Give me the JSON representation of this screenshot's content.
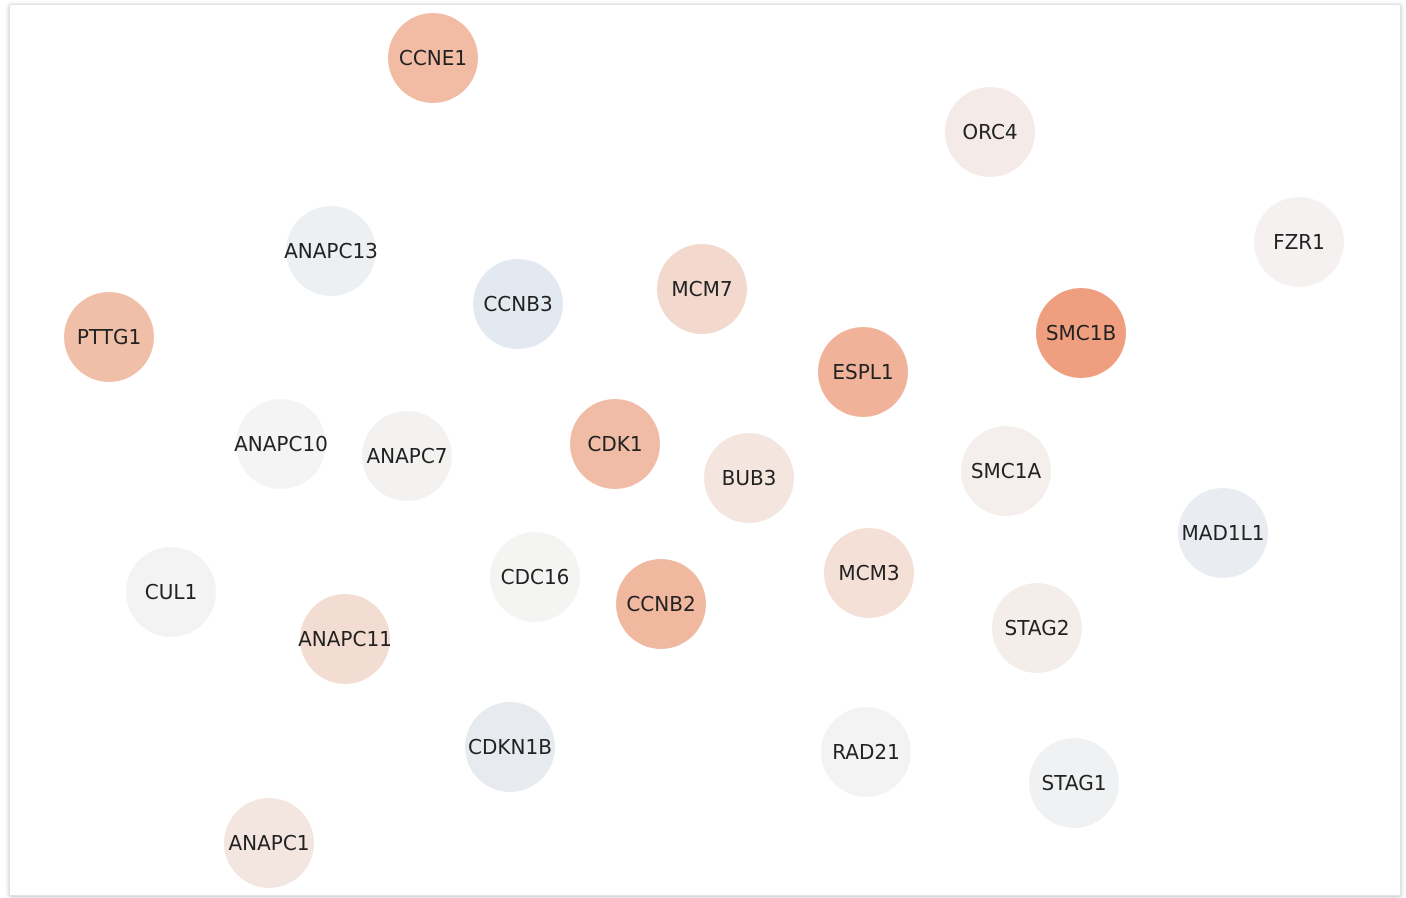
{
  "nodes": [
    {
      "label": "CCNE1",
      "color": "#f2bba4"
    },
    {
      "label": "ORC4",
      "color": "#f4ebe8"
    },
    {
      "label": "FZR1",
      "color": "#f5f1f0"
    },
    {
      "label": "ANAPC13",
      "color": "#edf0f3"
    },
    {
      "label": "CCNB3",
      "color": "#e2e9f0"
    },
    {
      "label": "MCM7",
      "color": "#f2d8cd"
    },
    {
      "label": "PTTG1",
      "color": "#f0bfa8"
    },
    {
      "label": "SMC1B",
      "color": "#ef9f7f"
    },
    {
      "label": "ESPL1",
      "color": "#f0b39a"
    },
    {
      "label": "ANAPC10",
      "color": "#f4f4f4"
    },
    {
      "label": "ANAPC7",
      "color": "#f3f2f1"
    },
    {
      "label": "CDK1",
      "color": "#f1bca5"
    },
    {
      "label": "BUB3",
      "color": "#f4e5df"
    },
    {
      "label": "SMC1A",
      "color": "#f4efed"
    },
    {
      "label": "MAD1L1",
      "color": "#e9edf1"
    },
    {
      "label": "CUL1",
      "color": "#f3f3f3"
    },
    {
      "label": "CDC16",
      "color": "#f4f4f3"
    },
    {
      "label": "CCNB2",
      "color": "#f1b8a0"
    },
    {
      "label": "MCM3",
      "color": "#f4e0d7"
    },
    {
      "label": "STAG2",
      "color": "#f4ede9"
    },
    {
      "label": "ANAPC11",
      "color": "#f3ddd2"
    },
    {
      "label": "CDKN1B",
      "color": "#e7ebef"
    },
    {
      "label": "RAD21",
      "color": "#f3f3f3"
    },
    {
      "label": "STAG1",
      "color": "#eff1f3"
    },
    {
      "label": "ANAPC1",
      "color": "#f3e6e1"
    }
  ]
}
